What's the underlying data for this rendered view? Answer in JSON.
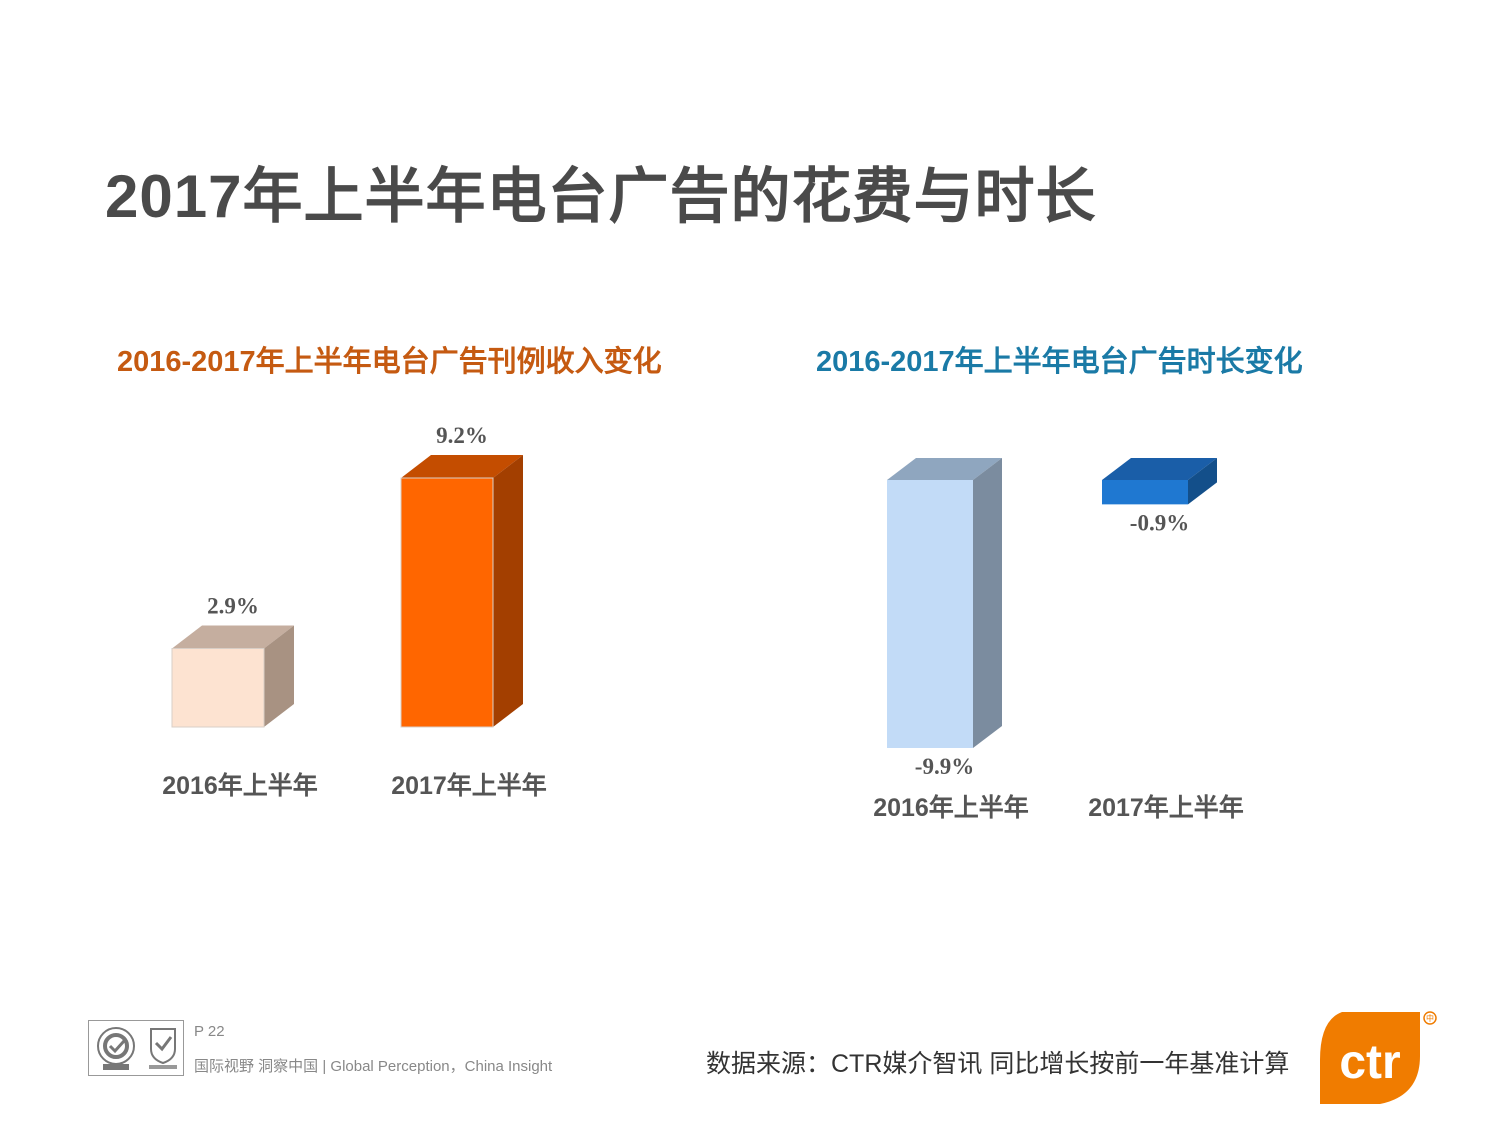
{
  "title": "2017年上半年电台广告的花费与时长",
  "chart_data": [
    {
      "type": "bar",
      "title": "2016-2017年上半年电台广告刊例收入变化",
      "categories": [
        "2016年上半年",
        "2017年上半年"
      ],
      "values": [
        2.9,
        9.2
      ],
      "value_labels": [
        "2.9%",
        "9.2%"
      ],
      "ylim": [
        0,
        9.2
      ],
      "grid": false,
      "colors": {
        "front": [
          "#fde3d1",
          "#ff6600"
        ],
        "side": [
          "#a89282",
          "#a33f00"
        ],
        "top": [
          "#c5ae9f",
          "#c44d00"
        ]
      }
    },
    {
      "type": "bar",
      "title": "2016-2017年上半年电台广告时长变化",
      "categories": [
        "2016年上半年",
        "2017年上半年"
      ],
      "values": [
        -9.9,
        -0.9
      ],
      "value_labels": [
        "-9.9%",
        "-0.9%"
      ],
      "ylim": [
        -9.9,
        0
      ],
      "grid": false,
      "colors": {
        "front": [
          "#c2dbf7",
          "#1f78d1"
        ],
        "side": [
          "#7b8c9f",
          "#134f8a"
        ],
        "top": [
          "#8fa6bf",
          "#1a5ea8"
        ]
      }
    }
  ],
  "footer": {
    "page": "P 22",
    "slogan": "国际视野  洞察中国 |  Global Perception，China Insight",
    "source": "数据来源：CTR媒介智讯    同比增长按前一年基准计算",
    "logo_text": "ctr",
    "logo_color": "#f07c00"
  }
}
